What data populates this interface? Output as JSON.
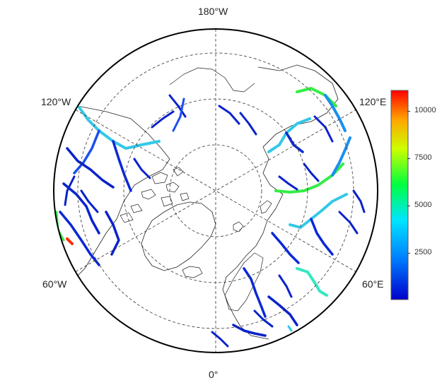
{
  "map": {
    "projection": "north polar stereographic",
    "graticule": "dashed",
    "longitude_labels": {
      "top": "180°W",
      "bottom": "0°",
      "upper_left": "120°W",
      "upper_right": "120°E",
      "lower_left": "60°W",
      "lower_right": "60°E"
    },
    "river_color_scale": "rainbow (blue low to red high)"
  },
  "colorbar": {
    "min": 0,
    "max": 11000,
    "ticks": [
      "2500",
      "5000",
      "7500",
      "10000"
    ],
    "colors": [
      "#0000cc",
      "#0080ff",
      "#00e5ff",
      "#00ff40",
      "#ccff00",
      "#ffa500",
      "#ff0000"
    ]
  }
}
